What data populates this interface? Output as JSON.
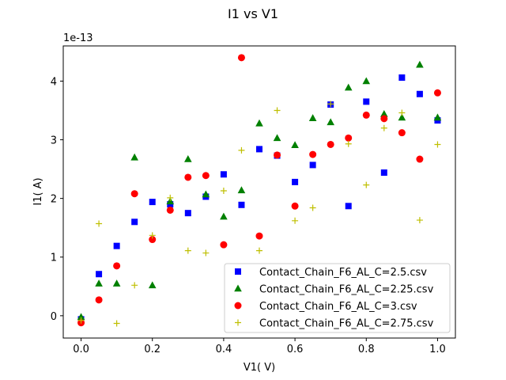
{
  "chart_data": {
    "type": "scatter",
    "title": "I1 vs V1",
    "xlabel": "V1( V)",
    "ylabel": "I1( A)",
    "y_offset_label": "1e-13",
    "xlim": [
      -0.05,
      1.05
    ],
    "ylim": [
      -0.38,
      4.6
    ],
    "x_ticks": [
      0.0,
      0.2,
      0.4,
      0.6,
      0.8,
      1.0
    ],
    "x_tick_labels": [
      "0.0",
      "0.2",
      "0.4",
      "0.6",
      "0.8",
      "1.0"
    ],
    "y_ticks": [
      0,
      1,
      2,
      3,
      4
    ],
    "y_tick_labels": [
      "0",
      "1",
      "2",
      "3",
      "4"
    ],
    "grid": false,
    "legend_position": "lower-right",
    "series": [
      {
        "name": "Contact_Chain_F6_AL_C=2.5.csv",
        "marker": "square",
        "color": "#0000ff",
        "x": [
          0.0,
          0.05,
          0.1,
          0.15,
          0.2,
          0.25,
          0.3,
          0.35,
          0.4,
          0.45,
          0.5,
          0.55,
          0.6,
          0.65,
          0.7,
          0.75,
          0.8,
          0.85,
          0.9,
          0.95,
          1.0
        ],
        "y": [
          -0.06,
          0.71,
          1.19,
          1.6,
          1.94,
          1.9,
          1.75,
          2.03,
          2.41,
          1.89,
          2.84,
          2.73,
          2.28,
          2.57,
          3.6,
          1.87,
          3.65,
          2.44,
          4.06,
          3.78,
          3.33
        ]
      },
      {
        "name": "Contact_Chain_F6_AL_C=2.25.csv",
        "marker": "triangle",
        "color": "#008000",
        "x": [
          0.0,
          0.05,
          0.1,
          0.15,
          0.2,
          0.25,
          0.3,
          0.35,
          0.4,
          0.45,
          0.5,
          0.55,
          0.6,
          0.65,
          0.7,
          0.75,
          0.8,
          0.85,
          0.9,
          0.95,
          1.0
        ],
        "y": [
          -0.02,
          0.55,
          0.55,
          2.7,
          0.52,
          1.95,
          2.67,
          2.07,
          1.69,
          2.14,
          3.28,
          3.03,
          2.91,
          3.37,
          3.3,
          3.89,
          4.0,
          3.44,
          3.38,
          4.28,
          3.38
        ]
      },
      {
        "name": "Contact_Chain_F6_AL_C=3.csv",
        "marker": "circle",
        "color": "#ff0000",
        "x": [
          0.0,
          0.05,
          0.1,
          0.15,
          0.2,
          0.25,
          0.3,
          0.35,
          0.4,
          0.45,
          0.5,
          0.55,
          0.6,
          0.65,
          0.7,
          0.75,
          0.8,
          0.85,
          0.9,
          0.95,
          1.0
        ],
        "y": [
          -0.12,
          0.27,
          0.85,
          2.08,
          1.3,
          1.8,
          2.36,
          2.39,
          1.21,
          4.4,
          1.36,
          2.74,
          1.87,
          2.75,
          2.92,
          3.03,
          3.42,
          3.36,
          3.12,
          2.67,
          3.8
        ]
      },
      {
        "name": "Contact_Chain_F6_AL_C=2.75.csv",
        "marker": "plus",
        "color": "#bfbf00",
        "x": [
          0.0,
          0.05,
          0.1,
          0.15,
          0.2,
          0.25,
          0.3,
          0.35,
          0.4,
          0.45,
          0.5,
          0.55,
          0.6,
          0.65,
          0.7,
          0.75,
          0.8,
          0.85,
          0.9,
          0.95,
          1.0
        ],
        "y": [
          -0.08,
          1.57,
          -0.13,
          0.52,
          1.37,
          2.01,
          1.11,
          1.07,
          2.13,
          2.82,
          1.11,
          3.5,
          1.62,
          1.84,
          3.61,
          2.93,
          2.23,
          3.2,
          3.46,
          1.63,
          2.92
        ]
      }
    ]
  }
}
